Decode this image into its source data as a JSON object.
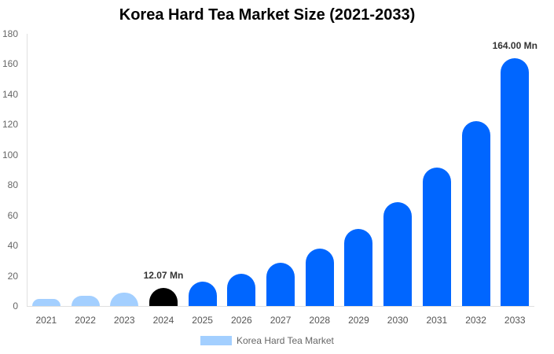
{
  "chart_data": {
    "type": "bar",
    "title": "Korea Hard Tea Market Size (2021-2033)",
    "xlabel": "",
    "ylabel": "",
    "ylim": [
      0,
      180
    ],
    "yticks": [
      0,
      20,
      40,
      60,
      80,
      100,
      120,
      140,
      160,
      180
    ],
    "grid": false,
    "legend_position": "bottom",
    "categories": [
      "2021",
      "2022",
      "2023",
      "2024",
      "2025",
      "2026",
      "2027",
      "2028",
      "2029",
      "2030",
      "2031",
      "2032",
      "2033"
    ],
    "series": [
      {
        "name": "Korea Hard Tea Market",
        "values": [
          4.7,
          6.8,
          8.9,
          12.07,
          16.0,
          21.3,
          28.6,
          38.1,
          51.1,
          68.5,
          91.7,
          122.3,
          164.0
        ],
        "colors": [
          "#a3cfff",
          "#a3cfff",
          "#a3cfff",
          "#000000",
          "#0066ff",
          "#0066ff",
          "#0066ff",
          "#0066ff",
          "#0066ff",
          "#0066ff",
          "#0066ff",
          "#0066ff",
          "#0066ff"
        ]
      }
    ],
    "annotations": [
      {
        "category": "2024",
        "text": "12.07 Mn"
      },
      {
        "category": "2033",
        "text": "164.00 Mn"
      }
    ]
  },
  "legend": {
    "label": "Korea Hard Tea Market",
    "color": "#a3cfff"
  }
}
